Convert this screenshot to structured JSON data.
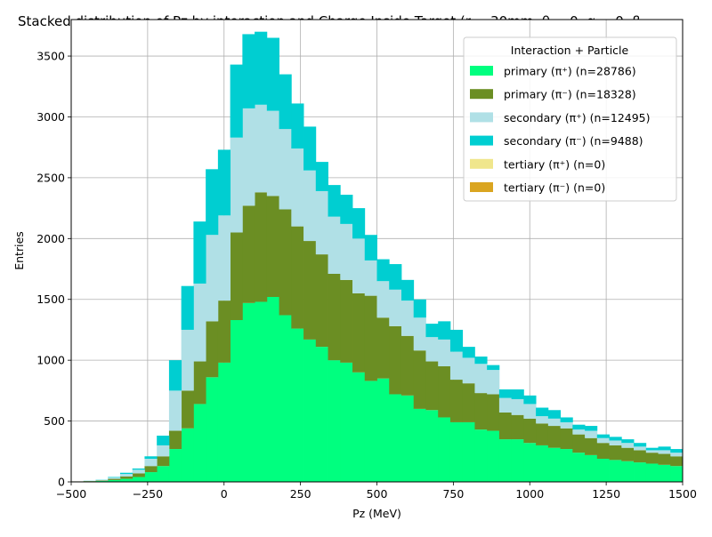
{
  "chart_data": {
    "type": "bar",
    "stacked": true,
    "title": "Stacked distribution of Pz by interaction and Charge Inside Target (r = 30mm, θ = 0, α = 0, β =",
    "xlabel": "Pz (MeV)",
    "ylabel": "Entries",
    "xlim": [
      -500,
      1500
    ],
    "ylim": [
      0,
      3800
    ],
    "xticks": [
      -500,
      -250,
      0,
      250,
      500,
      750,
      1000,
      1250,
      1500
    ],
    "yticks": [
      0,
      500,
      1000,
      1500,
      2000,
      2500,
      3000,
      3500
    ],
    "grid": true,
    "legend": {
      "title": "Interaction + Particle",
      "placement": "top-right"
    },
    "bin_width": 40,
    "bin_starts": [
      -500,
      -460,
      -420,
      -380,
      -340,
      -300,
      -260,
      -220,
      -180,
      -140,
      -100,
      -60,
      -20,
      20,
      60,
      100,
      140,
      180,
      220,
      260,
      300,
      340,
      380,
      420,
      460,
      500,
      540,
      580,
      620,
      660,
      700,
      740,
      780,
      820,
      860,
      900,
      940,
      980,
      1020,
      1060,
      1100,
      1140,
      1180,
      1220,
      1260,
      1300,
      1340,
      1380,
      1420,
      1460
    ],
    "series": [
      {
        "label": "primary (π⁺) (n=28786)",
        "color": "#00ff7f",
        "values": [
          3,
          5,
          8,
          15,
          25,
          40,
          80,
          130,
          270,
          440,
          640,
          860,
          980,
          1330,
          1470,
          1480,
          1520,
          1370,
          1260,
          1170,
          1110,
          1000,
          980,
          900,
          830,
          850,
          720,
          710,
          600,
          590,
          530,
          490,
          490,
          430,
          420,
          350,
          350,
          320,
          300,
          280,
          270,
          240,
          220,
          190,
          180,
          170,
          160,
          150,
          140,
          130
        ]
      },
      {
        "label": "primary (π⁻) (n=18328)",
        "color": "#6b8e23",
        "values": [
          1,
          2,
          4,
          10,
          20,
          30,
          50,
          80,
          150,
          310,
          350,
          460,
          510,
          720,
          800,
          900,
          830,
          870,
          840,
          810,
          760,
          710,
          680,
          650,
          700,
          500,
          560,
          490,
          480,
          400,
          420,
          350,
          320,
          300,
          300,
          220,
          200,
          200,
          180,
          180,
          170,
          150,
          140,
          130,
          120,
          110,
          100,
          90,
          90,
          80
        ]
      },
      {
        "label": "secondary (π⁺) (n=12495)",
        "color": "#b0e0e6",
        "values": [
          0,
          1,
          3,
          10,
          20,
          30,
          60,
          90,
          330,
          500,
          640,
          710,
          700,
          780,
          800,
          720,
          700,
          660,
          640,
          580,
          520,
          470,
          460,
          450,
          290,
          300,
          300,
          290,
          270,
          200,
          220,
          230,
          210,
          240,
          200,
          120,
          130,
          120,
          60,
          60,
          50,
          40,
          60,
          40,
          40,
          40,
          30,
          20,
          30,
          30
        ]
      },
      {
        "label": "secondary (π⁻) (n=9488)",
        "color": "#00ced1",
        "values": [
          0,
          1,
          2,
          5,
          10,
          10,
          20,
          80,
          250,
          360,
          510,
          540,
          540,
          600,
          610,
          600,
          600,
          450,
          370,
          360,
          240,
          260,
          240,
          250,
          210,
          180,
          210,
          170,
          150,
          110,
          150,
          180,
          90,
          60,
          40,
          70,
          80,
          70,
          70,
          70,
          40,
          40,
          40,
          30,
          30,
          30,
          30,
          20,
          30,
          30
        ]
      },
      {
        "label": "tertiary (π⁺) (n=0)",
        "color": "#f0e68c",
        "values": []
      },
      {
        "label": "tertiary (π⁻) (n=0)",
        "color": "#daa520",
        "values": []
      }
    ]
  }
}
